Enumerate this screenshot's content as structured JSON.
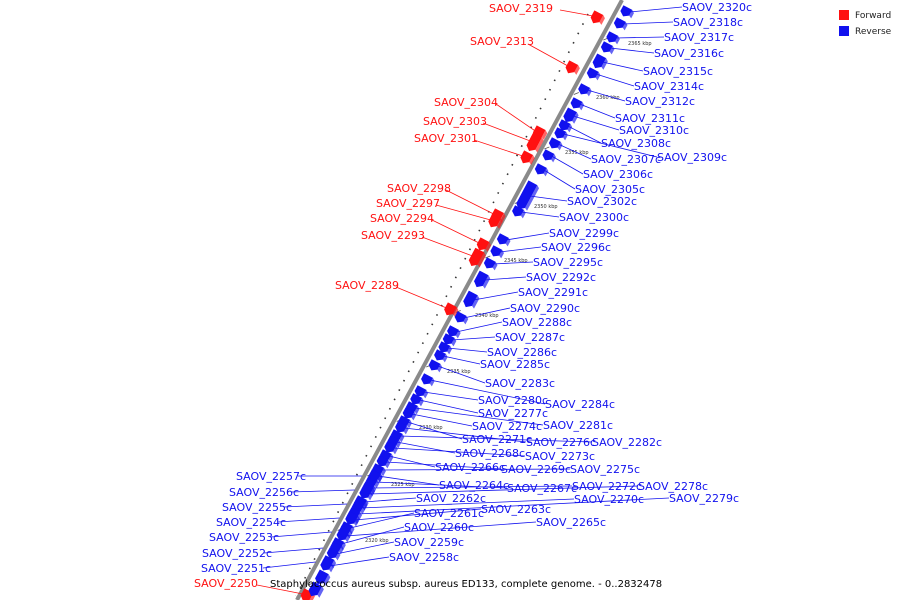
{
  "title": "Staphylococcus aureus subsp. aureus ED133, complete genome. - 0..2832478",
  "legend": [
    {
      "label": "Forward",
      "color": "#ff1111"
    },
    {
      "label": "Reverse",
      "color": "#1111ee"
    }
  ],
  "colors": {
    "forward": "#ff1111",
    "reverse": "#1111ee",
    "backbone": "#8a8a8a"
  },
  "ticks": [
    "2365 kbp",
    "2360 kbp",
    "2355 kbp",
    "2350 kbp",
    "2345 kbp",
    "2340 kbp",
    "2335 kbp",
    "2330 kbp",
    "2325 kbp",
    "2320 kbp"
  ],
  "forward_genes": [
    "SAOV_2319",
    "SAOV_2313",
    "SAOV_2304",
    "SAOV_2303",
    "SAOV_2301",
    "SAOV_2298",
    "SAOV_2297",
    "SAOV_2294",
    "SAOV_2293",
    "SAOV_2289",
    "SAOV_2250"
  ],
  "reverse_genes": [
    "SAOV_2320c",
    "SAOV_2318c",
    "SAOV_2317c",
    "SAOV_2316c",
    "SAOV_2315c",
    "SAOV_2314c",
    "SAOV_2312c",
    "SAOV_2311c",
    "SAOV_2310c",
    "SAOV_2308c",
    "SAOV_2309c",
    "SAOV_2307c",
    "SAOV_2306c",
    "SAOV_2305c",
    "SAOV_2302c",
    "SAOV_2300c",
    "SAOV_2299c",
    "SAOV_2296c",
    "SAOV_2295c",
    "SAOV_2292c",
    "SAOV_2291c",
    "SAOV_2290c",
    "SAOV_2288c",
    "SAOV_2287c",
    "SAOV_2286c",
    "SAOV_2285c",
    "SAOV_2283c",
    "SAOV_2284c",
    "SAOV_2280c",
    "SAOV_2277c",
    "SAOV_2281c",
    "SAOV_2274c",
    "SAOV_2271c",
    "SAOV_2276c",
    "SAOV_2282c",
    "SAOV_2268c",
    "SAOV_2273c",
    "SAOV_2266c",
    "SAOV_2269c",
    "SAOV_2275c",
    "SAOV_2264c",
    "SAOV_2267c",
    "SAOV_2272c",
    "SAOV_2278c",
    "SAOV_2262c",
    "SAOV_2270c",
    "SAOV_2279c",
    "SAOV_2263c",
    "SAOV_2261c",
    "SAOV_2265c",
    "SAOV_2260c",
    "SAOV_2259c",
    "SAOV_2258c",
    "SAOV_2257c",
    "SAOV_2256c",
    "SAOV_2255c",
    "SAOV_2254c",
    "SAOV_2253c",
    "SAOV_2252c",
    "SAOV_2251c"
  ]
}
